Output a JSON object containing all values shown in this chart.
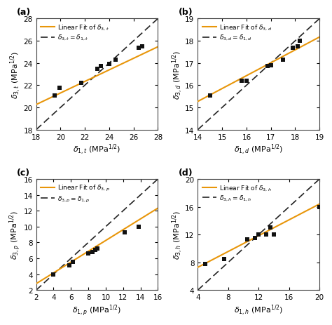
{
  "panels": [
    {
      "label": "(a)",
      "xlabel": "$\\delta_{1,t}$ (MPa$^{1/2}$)",
      "ylabel": "$\\delta_{3,t}$ (MPa$^{1/2}$)",
      "legend_fit": "Linear Fit of $\\delta_{3,t}$",
      "legend_diag": "$\\delta_{3,t} = \\delta_{1,t}$",
      "xlim": [
        18,
        28
      ],
      "ylim": [
        18,
        28
      ],
      "xticks": [
        18,
        20,
        22,
        24,
        26,
        28
      ],
      "yticks": [
        18,
        20,
        22,
        24,
        26,
        28
      ],
      "data_x": [
        19.5,
        19.9,
        21.7,
        23.0,
        23.3,
        24.0,
        24.5,
        26.4,
        26.7
      ],
      "data_y": [
        21.1,
        21.8,
        22.2,
        23.5,
        23.7,
        23.9,
        24.3,
        25.4,
        25.5
      ],
      "fit_slope": 0.52,
      "fit_intercept": 10.9
    },
    {
      "label": "(b)",
      "xlabel": "$\\delta_{1,d}$ (MPa$^{1/2}$)",
      "ylabel": "$\\delta_{3,d}$ (MPa$^{1/2}$)",
      "legend_fit": "Linear Fit of $\\delta_{3,d}$",
      "legend_diag": "$\\delta_{3,d} = \\delta_{1,d}$",
      "xlim": [
        14,
        19
      ],
      "ylim": [
        14,
        19
      ],
      "xticks": [
        14,
        15,
        16,
        17,
        18,
        19
      ],
      "yticks": [
        14,
        15,
        16,
        17,
        18,
        19
      ],
      "data_x": [
        14.5,
        15.8,
        16.0,
        16.85,
        17.0,
        17.5,
        17.9,
        18.1,
        18.2
      ],
      "data_y": [
        15.55,
        16.2,
        16.2,
        16.85,
        16.9,
        17.15,
        17.7,
        17.75,
        18.0
      ],
      "fit_slope": 0.58,
      "fit_intercept": 7.15
    },
    {
      "label": "(c)",
      "xlabel": "$\\delta_{1,p}$ (MPa$^{1/2}$)",
      "ylabel": "$\\delta_{3,p}$ (MPa$^{1/2}$)",
      "legend_fit": "Linear Fit of $\\delta_{3,p}$",
      "legend_diag": "$\\delta_{3,p} = \\delta_{1,p}$",
      "xlim": [
        2,
        16
      ],
      "ylim": [
        2,
        16
      ],
      "xticks": [
        2,
        4,
        6,
        8,
        10,
        12,
        14,
        16
      ],
      "yticks": [
        2,
        4,
        6,
        8,
        10,
        12,
        14,
        16
      ],
      "data_x": [
        4.0,
        5.8,
        6.2,
        8.0,
        8.5,
        8.8,
        9.0,
        12.2,
        13.8
      ],
      "data_y": [
        4.0,
        5.15,
        5.6,
        6.65,
        6.8,
        7.1,
        7.2,
        9.3,
        10.0
      ],
      "fit_slope": 0.68,
      "fit_intercept": 1.45
    },
    {
      "label": "(d)",
      "xlabel": "$\\delta_{1,h}$ (MPa$^{1/2}$)",
      "ylabel": "$\\delta_{3,h}$ (MPa$^{1/2}$)",
      "legend_fit": "Linear Fit of $\\delta_{3,h}$",
      "legend_diag": "$\\delta_{3,h} = \\delta_{1,h}$",
      "xlim": [
        4,
        20
      ],
      "ylim": [
        4,
        20
      ],
      "xticks": [
        4,
        8,
        12,
        16,
        20
      ],
      "yticks": [
        4,
        8,
        12,
        16,
        20
      ],
      "data_x": [
        5.0,
        7.5,
        10.5,
        11.5,
        12.0,
        13.0,
        13.5,
        14.0,
        20.0
      ],
      "data_y": [
        7.8,
        8.5,
        11.3,
        11.5,
        12.0,
        12.0,
        13.0,
        12.0,
        16.0
      ],
      "fit_slope": 0.57,
      "fit_intercept": 5.0
    }
  ],
  "fit_color": "#E8960A",
  "diag_color": "#222222",
  "marker_color": "#111111",
  "bg_color": "#ffffff"
}
